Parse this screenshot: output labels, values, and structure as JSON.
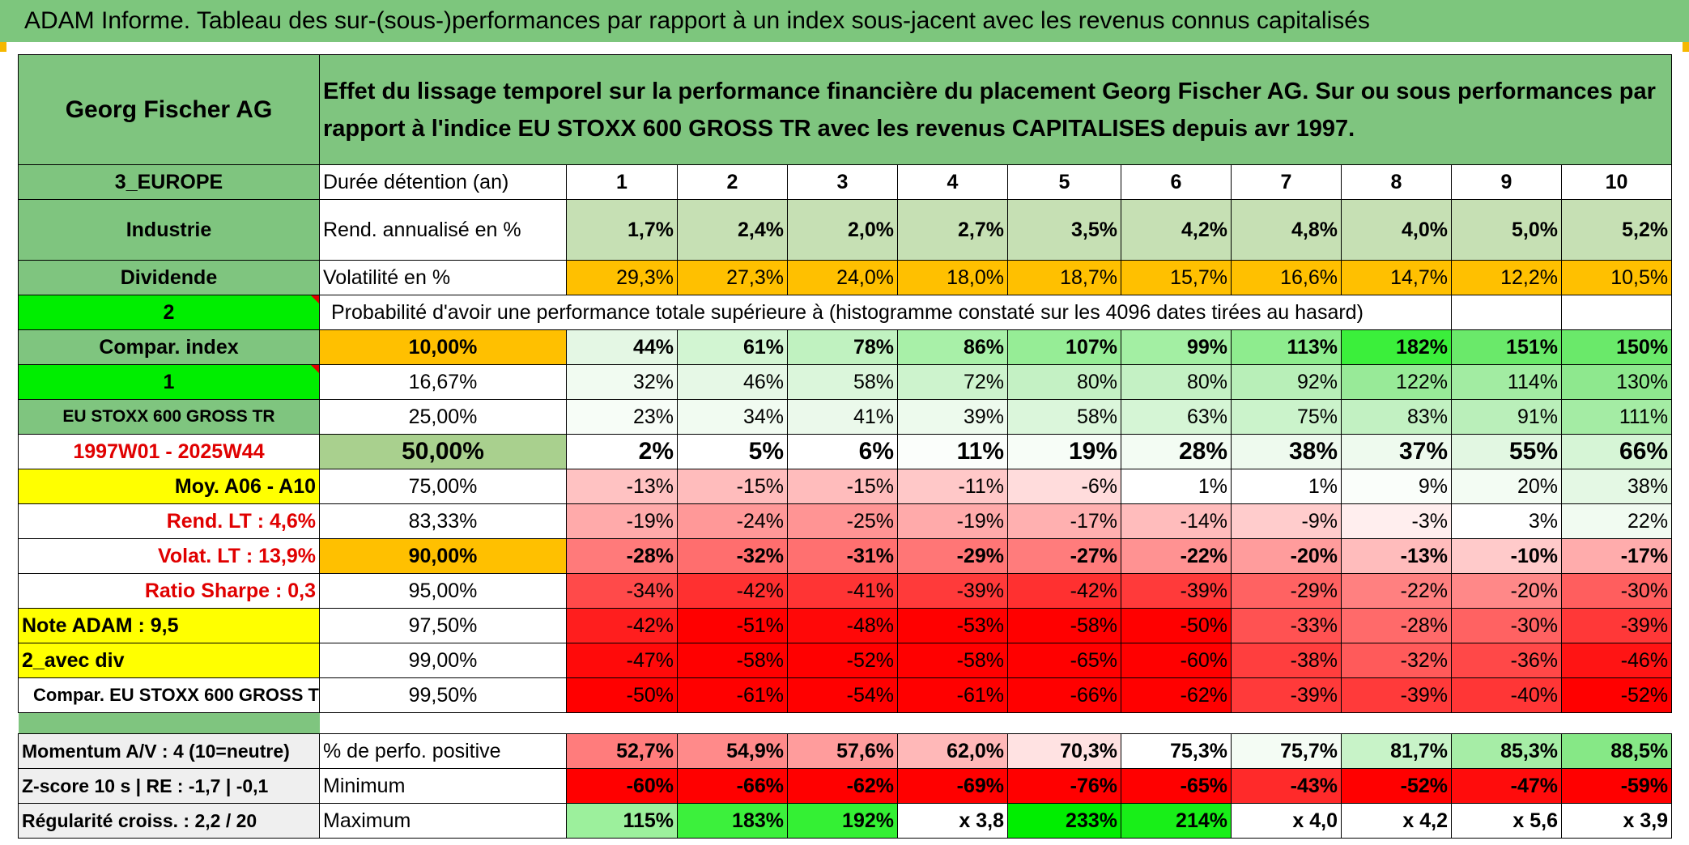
{
  "banner": "ADAM Informe. Tableau des sur-(sous-)performances par rapport à un index sous-jacent avec les revenus connus capitalisés",
  "header": {
    "company": "Georg Fischer AG",
    "description": "Effet du lissage temporel sur la performance financière du placement Georg Fischer AG. Sur ou sous performances par rapport à l'indice EU STOXX 600 GROSS TR avec les revenus CAPITALISES depuis avr 1997."
  },
  "side": {
    "region": "3_EUROPE",
    "sector": "Industrie",
    "dividend": "Dividende",
    "num2": "2",
    "compar": "Compar. index",
    "num1": "1",
    "index": "EU STOXX 600 GROSS TR",
    "period": "1997W01 - 2025W44",
    "moy": "Moy. A06 - A10",
    "rend": "Rend. LT :   4,6%",
    "volat": "Volat. LT :   13,9%",
    "sharpe": "Ratio Sharpe :    0,3",
    "note": "Note ADAM : 9,5",
    "div": "2_avec div",
    "compar2": "Compar. EU STOXX 600 GROSS TR",
    "momentum": "Momentum A/V : 4 (10=neutre)",
    "zscore": "Z-score 10 s | RE : -1,7 | -0,1",
    "regul": "Régularité croiss. : 2,2 / 20"
  },
  "labels": {
    "duree": "Durée détention (an)",
    "rend": "Rend. annualisé en %",
    "volat": "Volatilité en %",
    "prob": "Probabilité d'avoir une performance totale supérieure à (histogramme constaté sur les 4096 dates tirées au hasard)",
    "pos": "% de perfo. positive",
    "min": "Minimum",
    "max": "Maximum"
  },
  "years": [
    "1",
    "2",
    "3",
    "4",
    "5",
    "6",
    "7",
    "8",
    "9",
    "10"
  ],
  "rend": [
    "1,7%",
    "2,4%",
    "2,0%",
    "2,7%",
    "3,5%",
    "4,2%",
    "4,8%",
    "4,0%",
    "5,0%",
    "5,2%"
  ],
  "volat": [
    "29,3%",
    "27,3%",
    "24,0%",
    "18,0%",
    "18,7%",
    "15,7%",
    "16,6%",
    "14,7%",
    "12,2%",
    "10,5%"
  ],
  "volat_colors": [
    "#ffc000",
    "#ffc000",
    "#ffc000",
    "#ffc000",
    "#ffc000",
    "#ffc000",
    "#ffc000",
    "#ffc000",
    "#ffc000",
    "#ffc000"
  ],
  "prob_rows": [
    {
      "pct": "10,00%",
      "pct_bg": "#ffc000",
      "bold": true,
      "vals": [
        "44%",
        "61%",
        "78%",
        "86%",
        "107%",
        "99%",
        "113%",
        "182%",
        "151%",
        "150%"
      ],
      "colors": [
        "#e4f7e4",
        "#d2f5d2",
        "#c0f2c0",
        "#a8f0a8",
        "#96ed96",
        "#a3ef a3",
        "#8eec8e",
        "#3bef3b",
        "#6ae96a",
        "#6ae96a"
      ]
    },
    {
      "pct": "16,67%",
      "pct_bg": "#ffffff",
      "bold": false,
      "vals": [
        "32%",
        "46%",
        "58%",
        "72%",
        "80%",
        "80%",
        "92%",
        "122%",
        "114%",
        "130%"
      ],
      "colors": [
        "#f1fbf1",
        "#e6f8e6",
        "#dbf6db",
        "#cdf3cd",
        "#c4f1c4",
        "#c4f1c4",
        "#b8efb8",
        "#98ea98",
        "#a2ec a2",
        "#8ee88e"
      ]
    },
    {
      "pct": "25,00%",
      "pct_bg": "#ffffff",
      "bold": false,
      "vals": [
        "23%",
        "34%",
        "41%",
        "39%",
        "58%",
        "63%",
        "75%",
        "83%",
        "91%",
        "111%"
      ],
      "colors": [
        "#f7fdf7",
        "#f1fbf1",
        "#ebf9eb",
        "#edfaed",
        "#dbf6db",
        "#d5f5d5",
        "#cbf3cb",
        "#c2f1c2",
        "#baefba",
        "#a4eca4"
      ]
    },
    {
      "pct": "50,00%",
      "pct_bg": "#a9d08e",
      "bold": true,
      "big": true,
      "vals": [
        "2%",
        "5%",
        "6%",
        "11%",
        "19%",
        "28%",
        "38%",
        "37%",
        "55%",
        "66%"
      ],
      "colors": [
        "#ffffff",
        "#ffffff",
        "#ffffff",
        "#fbfefb",
        "#f7fdf7",
        "#f3fcf3",
        "#eefaee",
        "#eefaee",
        "#e2f7e2",
        "#d6f5d6"
      ]
    },
    {
      "pct": "75,00%",
      "pct_bg": "#ffffff",
      "bold": false,
      "vals": [
        "-13%",
        "-15%",
        "-15%",
        "-11%",
        "-6%",
        "1%",
        "1%",
        "9%",
        "20%",
        "38%"
      ],
      "colors": [
        "#ffc2c2",
        "#ffbcbc",
        "#ffbcbc",
        "#ffc8c8",
        "#ffdcdc",
        "#ffffff",
        "#ffffff",
        "#fafefa",
        "#f3fcf3",
        "#e4f8e4"
      ]
    },
    {
      "pct": "83,33%",
      "pct_bg": "#ffffff",
      "bold": false,
      "vals": [
        "-19%",
        "-24%",
        "-25%",
        "-19%",
        "-17%",
        "-14%",
        "-9%",
        "-3%",
        "3%",
        "22%"
      ],
      "colors": [
        "#ffaaaa",
        "#ff9898",
        "#ff9494",
        "#ffaaaa",
        "#ffb0b0",
        "#ffbcbc",
        "#ffcccc",
        "#ffeeee",
        "#ffffff",
        "#f1fbf1"
      ]
    },
    {
      "pct": "90,00%",
      "pct_bg": "#ffc000",
      "bold": true,
      "vals": [
        "-28%",
        "-32%",
        "-31%",
        "-29%",
        "-27%",
        "-22%",
        "-20%",
        "-13%",
        "-10%",
        "-17%"
      ],
      "colors": [
        "#ff7a7a",
        "#ff6e6e",
        "#ff7070",
        "#ff7676",
        "#ff7c7c",
        "#ff9292",
        "#ff9c9c",
        "#ffbcbc",
        "#ffcaca",
        "#ffacac"
      ]
    },
    {
      "pct": "95,00%",
      "pct_bg": "#ffffff",
      "bold": false,
      "vals": [
        "-34%",
        "-42%",
        "-41%",
        "-39%",
        "-42%",
        "-39%",
        "-29%",
        "-22%",
        "-20%",
        "-30%"
      ],
      "colors": [
        "#ff4a4a",
        "#ff3030",
        "#ff3434",
        "#ff3a3a",
        "#ff3030",
        "#ff3a3a",
        "#ff6262",
        "#ff8080",
        "#ff8888",
        "#ff5e5e"
      ]
    },
    {
      "pct": "97,50%",
      "pct_bg": "#ffffff",
      "bold": false,
      "vals": [
        "-42%",
        "-51%",
        "-48%",
        "-53%",
        "-58%",
        "-50%",
        "-33%",
        "-28%",
        "-30%",
        "-39%"
      ],
      "colors": [
        "#ff1e1e",
        "#ff0000",
        "#ff0808",
        "#ff0000",
        "#ff0000",
        "#ff0000",
        "#ff5252",
        "#ff6a6a",
        "#ff6262",
        "#ff3838"
      ]
    },
    {
      "pct": "99,00%",
      "pct_bg": "#ffffff",
      "bold": false,
      "vals": [
        "-47%",
        "-58%",
        "-52%",
        "-58%",
        "-65%",
        "-60%",
        "-38%",
        "-32%",
        "-36%",
        "-46%"
      ],
      "colors": [
        "#ff0a0a",
        "#ff0000",
        "#ff0000",
        "#ff0000",
        "#ff0000",
        "#ff0000",
        "#ff3e3e",
        "#ff5a5a",
        "#ff4848",
        "#ff1414"
      ]
    },
    {
      "pct": "99,50%",
      "pct_bg": "#ffffff",
      "bold": false,
      "vals": [
        "-50%",
        "-61%",
        "-54%",
        "-61%",
        "-66%",
        "-62%",
        "-39%",
        "-39%",
        "-40%",
        "-52%"
      ],
      "colors": [
        "#ff0000",
        "#ff0000",
        "#ff0000",
        "#ff0000",
        "#ff0000",
        "#ff0000",
        "#ff3a3a",
        "#ff3a3a",
        "#ff3636",
        "#ff0000"
      ]
    }
  ],
  "pos": [
    "52,7%",
    "54,9%",
    "57,6%",
    "62,0%",
    "70,3%",
    "75,3%",
    "75,7%",
    "81,7%",
    "85,3%",
    "88,5%"
  ],
  "pos_colors": [
    "#ff7c7c",
    "#ff8a8a",
    "#ff9c9c",
    "#ffb8b8",
    "#ffe2e2",
    "#ffffff",
    "#f4fcf4",
    "#c8f3c8",
    "#a6eda6",
    "#86e886"
  ],
  "min": [
    "-60%",
    "-66%",
    "-62%",
    "-69%",
    "-76%",
    "-65%",
    "-43%",
    "-52%",
    "-47%",
    "-59%"
  ],
  "min_colors": [
    "#ff0000",
    "#ff0000",
    "#ff0000",
    "#ff0000",
    "#ff0000",
    "#ff0000",
    "#ff2a2a",
    "#ff0000",
    "#ff0c0c",
    "#ff0000"
  ],
  "max": [
    "115%",
    "183%",
    "192%",
    "x 3,8",
    "233%",
    "214%",
    "x 4,0",
    "x 4,2",
    "x 5,6",
    "x 3,9"
  ],
  "max_colors": [
    "#9cf09c",
    "#3cf03c",
    "#34f034",
    "#ffffff",
    "#00ee00",
    "#18ef18",
    "#ffffff",
    "#ffffff",
    "#ffffff",
    "#ffffff"
  ]
}
